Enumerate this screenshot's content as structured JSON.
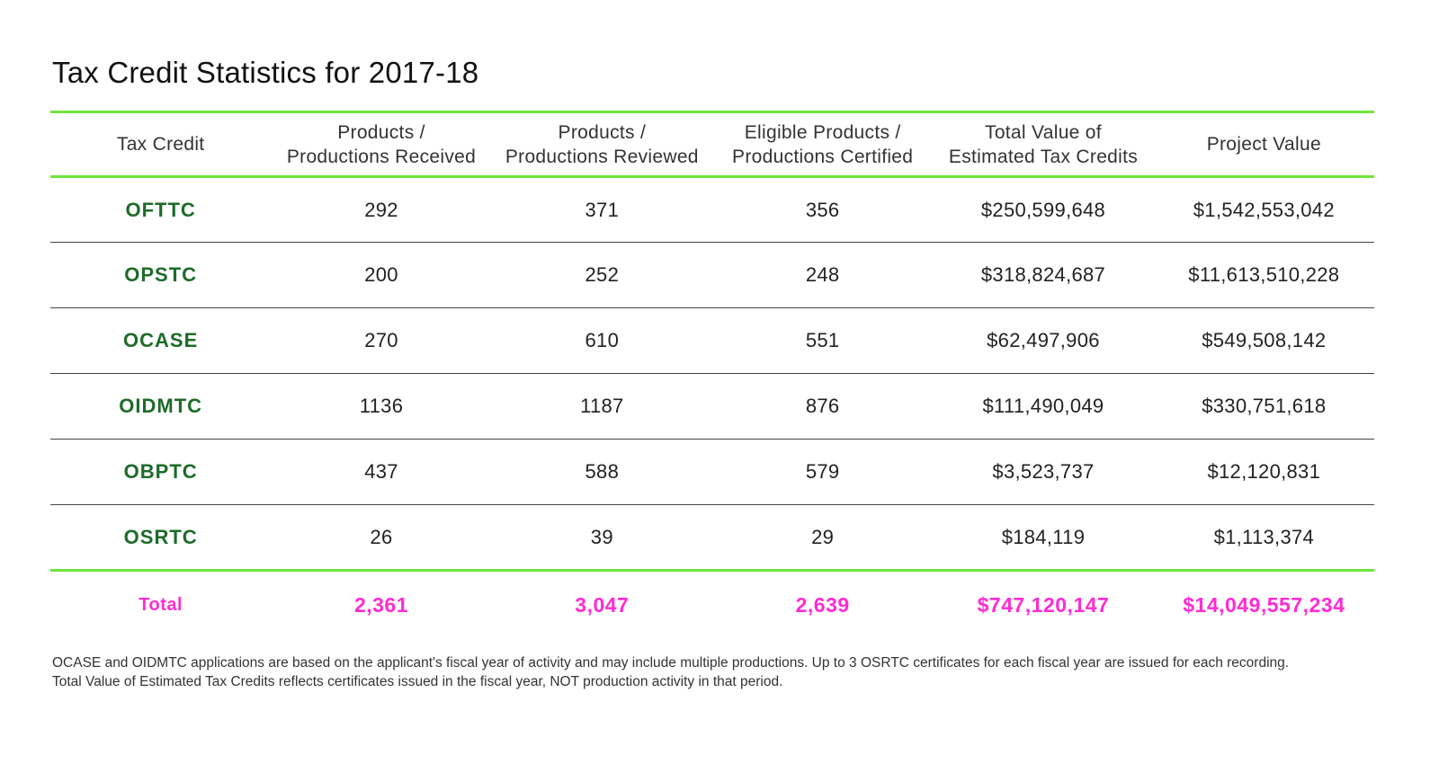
{
  "title": "Tax Credit Statistics for 2017-18",
  "table": {
    "headers": [
      [
        "Tax Credit"
      ],
      [
        "Products /",
        "Productions Received"
      ],
      [
        "Products /",
        "Productions Reviewed"
      ],
      [
        "Eligible Products /",
        "Productions Certified"
      ],
      [
        "Total Value of",
        "Estimated Tax Credits"
      ],
      [
        "Project Value"
      ]
    ],
    "rows": [
      [
        "OFTTC",
        "292",
        "371",
        "356",
        "$250,599,648",
        "$1,542,553,042"
      ],
      [
        "OPSTC",
        "200",
        "252",
        "248",
        "$318,824,687",
        "$11,613,510,228"
      ],
      [
        "OCASE",
        "270",
        "610",
        "551",
        "$62,497,906",
        "$549,508,142"
      ],
      [
        "OIDMTC",
        "1136",
        "1187",
        "876",
        "$111,490,049",
        "$330,751,618"
      ],
      [
        "OBPTC",
        "437",
        "588",
        "579",
        "$3,523,737",
        "$12,120,831"
      ],
      [
        "OSRTC",
        "26",
        "39",
        "29",
        "$184,119",
        "$1,113,374"
      ]
    ],
    "total": [
      "Total",
      "2,361",
      "3,047",
      "2,639",
      "$747,120,147",
      "$14,049,557,234"
    ]
  },
  "footnote": [
    "OCASE and OIDMTC applications are based on the applicant's fiscal year of activity and may include multiple productions. Up to 3 OSRTC certificates for each fiscal year are issued for each recording.",
    "Total Value of Estimated Tax Credits reflects certificates issued in the fiscal year, NOT production activity in that period."
  ],
  "colors": {
    "rule_green": "#6de63a",
    "credit_name_green": "#1e6b2a",
    "total_magenta": "#ff2bd4"
  }
}
